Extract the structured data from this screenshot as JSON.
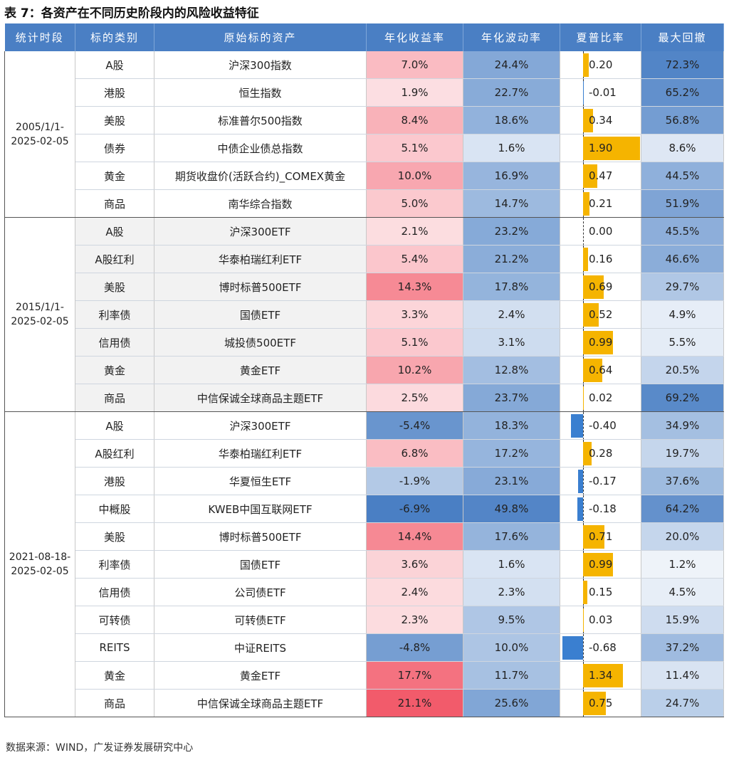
{
  "title": "表 7：各资产在不同历史阶段内的风险收益特征",
  "source": "数据来源：WIND，广发证券发展研究中心",
  "headers": [
    "统计时段",
    "标的类别",
    "原始标的资产",
    "年化收益率",
    "年化波动率",
    "夏普比率",
    "最大回撤"
  ],
  "colors": {
    "header_bg": "#4a7fc4",
    "positive_heat": "#f25b6b",
    "negative_heat": "#4a7fc4",
    "sharpe_positive": "#f5b400",
    "sharpe_negative": "#3a7fd0"
  },
  "groups": [
    {
      "period": "2005/1/1-2025-02-05",
      "rows": [
        {
          "category": "A股",
          "asset": "沪深300指数",
          "ret": "7.0%",
          "vol": "24.4%",
          "sharpe": "0.20",
          "mdd": "72.3%",
          "ret_v": 7.0,
          "vol_v": 24.4,
          "sharpe_v": 0.2,
          "mdd_v": 72.3
        },
        {
          "category": "港股",
          "asset": "恒生指数",
          "ret": "1.9%",
          "vol": "22.7%",
          "sharpe": "-0.01",
          "mdd": "65.2%",
          "ret_v": 1.9,
          "vol_v": 22.7,
          "sharpe_v": -0.01,
          "mdd_v": 65.2
        },
        {
          "category": "美股",
          "asset": "标准普尔500指数",
          "ret": "8.4%",
          "vol": "18.6%",
          "sharpe": "0.34",
          "mdd": "56.8%",
          "ret_v": 8.4,
          "vol_v": 18.6,
          "sharpe_v": 0.34,
          "mdd_v": 56.8
        },
        {
          "category": "债券",
          "asset": "中债企业债总指数",
          "ret": "5.1%",
          "vol": "1.6%",
          "sharpe": "1.90",
          "mdd": "8.6%",
          "ret_v": 5.1,
          "vol_v": 1.6,
          "sharpe_v": 1.9,
          "mdd_v": 8.6
        },
        {
          "category": "黄金",
          "asset": "期货收盘价(活跃合约)_COMEX黄金",
          "ret": "10.0%",
          "vol": "16.9%",
          "sharpe": "0.47",
          "mdd": "44.5%",
          "ret_v": 10.0,
          "vol_v": 16.9,
          "sharpe_v": 0.47,
          "mdd_v": 44.5
        },
        {
          "category": "商品",
          "asset": "南华综合指数",
          "ret": "5.0%",
          "vol": "14.7%",
          "sharpe": "0.21",
          "mdd": "51.9%",
          "ret_v": 5.0,
          "vol_v": 14.7,
          "sharpe_v": 0.21,
          "mdd_v": 51.9
        }
      ]
    },
    {
      "period": "2015/1/1-2025-02-05",
      "rows": [
        {
          "category": "A股",
          "asset": "沪深300ETF",
          "ret": "2.1%",
          "vol": "23.2%",
          "sharpe": "0.00",
          "mdd": "45.5%",
          "ret_v": 2.1,
          "vol_v": 23.2,
          "sharpe_v": 0.0,
          "mdd_v": 45.5
        },
        {
          "category": "A股红利",
          "asset": "华泰柏瑞红利ETF",
          "ret": "5.4%",
          "vol": "21.2%",
          "sharpe": "0.16",
          "mdd": "46.6%",
          "ret_v": 5.4,
          "vol_v": 21.2,
          "sharpe_v": 0.16,
          "mdd_v": 46.6
        },
        {
          "category": "美股",
          "asset": "博时标普500ETF",
          "ret": "14.3%",
          "vol": "17.8%",
          "sharpe": "0.69",
          "mdd": "29.7%",
          "ret_v": 14.3,
          "vol_v": 17.8,
          "sharpe_v": 0.69,
          "mdd_v": 29.7
        },
        {
          "category": "利率债",
          "asset": "国债ETF",
          "ret": "3.3%",
          "vol": "2.4%",
          "sharpe": "0.52",
          "mdd": "4.9%",
          "ret_v": 3.3,
          "vol_v": 2.4,
          "sharpe_v": 0.52,
          "mdd_v": 4.9
        },
        {
          "category": "信用债",
          "asset": "城投债500ETF",
          "ret": "5.1%",
          "vol": "3.1%",
          "sharpe": "0.99",
          "mdd": "5.5%",
          "ret_v": 5.1,
          "vol_v": 3.1,
          "sharpe_v": 0.99,
          "mdd_v": 5.5
        },
        {
          "category": "黄金",
          "asset": "黄金ETF",
          "ret": "10.2%",
          "vol": "12.8%",
          "sharpe": "0.64",
          "mdd": "20.5%",
          "ret_v": 10.2,
          "vol_v": 12.8,
          "sharpe_v": 0.64,
          "mdd_v": 20.5
        },
        {
          "category": "商品",
          "asset": "中信保诚全球商品主题ETF",
          "ret": "2.5%",
          "vol": "23.7%",
          "sharpe": "0.02",
          "mdd": "69.2%",
          "ret_v": 2.5,
          "vol_v": 23.7,
          "sharpe_v": 0.02,
          "mdd_v": 69.2
        }
      ]
    },
    {
      "period": "2021-08-18-2025-02-05",
      "rows": [
        {
          "category": "A股",
          "asset": "沪深300ETF",
          "ret": "-5.4%",
          "vol": "18.3%",
          "sharpe": "-0.40",
          "mdd": "34.9%",
          "ret_v": -5.4,
          "vol_v": 18.3,
          "sharpe_v": -0.4,
          "mdd_v": 34.9
        },
        {
          "category": "A股红利",
          "asset": "华泰柏瑞红利ETF",
          "ret": "6.8%",
          "vol": "17.2%",
          "sharpe": "0.28",
          "mdd": "19.7%",
          "ret_v": 6.8,
          "vol_v": 17.2,
          "sharpe_v": 0.28,
          "mdd_v": 19.7
        },
        {
          "category": "港股",
          "asset": "华夏恒生ETF",
          "ret": "-1.9%",
          "vol": "23.1%",
          "sharpe": "-0.17",
          "mdd": "37.6%",
          "ret_v": -1.9,
          "vol_v": 23.1,
          "sharpe_v": -0.17,
          "mdd_v": 37.6
        },
        {
          "category": "中概股",
          "asset": "KWEB中国互联网ETF",
          "ret": "-6.9%",
          "vol": "49.8%",
          "sharpe": "-0.18",
          "mdd": "64.2%",
          "ret_v": -6.9,
          "vol_v": 49.8,
          "sharpe_v": -0.18,
          "mdd_v": 64.2
        },
        {
          "category": "美股",
          "asset": "博时标普500ETF",
          "ret": "14.4%",
          "vol": "17.6%",
          "sharpe": "0.71",
          "mdd": "20.0%",
          "ret_v": 14.4,
          "vol_v": 17.6,
          "sharpe_v": 0.71,
          "mdd_v": 20.0
        },
        {
          "category": "利率债",
          "asset": "国债ETF",
          "ret": "3.6%",
          "vol": "1.6%",
          "sharpe": "0.99",
          "mdd": "1.2%",
          "ret_v": 3.6,
          "vol_v": 1.6,
          "sharpe_v": 0.99,
          "mdd_v": 1.2
        },
        {
          "category": "信用债",
          "asset": "公司债ETF",
          "ret": "2.4%",
          "vol": "2.3%",
          "sharpe": "0.15",
          "mdd": "4.5%",
          "ret_v": 2.4,
          "vol_v": 2.3,
          "sharpe_v": 0.15,
          "mdd_v": 4.5
        },
        {
          "category": "可转债",
          "asset": "可转债ETF",
          "ret": "2.3%",
          "vol": "9.5%",
          "sharpe": "0.03",
          "mdd": "15.9%",
          "ret_v": 2.3,
          "vol_v": 9.5,
          "sharpe_v": 0.03,
          "mdd_v": 15.9
        },
        {
          "category": "REITS",
          "asset": "中证REITS",
          "ret": "-4.8%",
          "vol": "10.0%",
          "sharpe": "-0.68",
          "mdd": "37.2%",
          "ret_v": -4.8,
          "vol_v": 10.0,
          "sharpe_v": -0.68,
          "mdd_v": 37.2
        },
        {
          "category": "黄金",
          "asset": "黄金ETF",
          "ret": "17.7%",
          "vol": "11.7%",
          "sharpe": "1.34",
          "mdd": "11.4%",
          "ret_v": 17.7,
          "vol_v": 11.7,
          "sharpe_v": 1.34,
          "mdd_v": 11.4
        },
        {
          "category": "商品",
          "asset": "中信保诚全球商品主题ETF",
          "ret": "21.1%",
          "vol": "25.6%",
          "sharpe": "0.75",
          "mdd": "24.7%",
          "ret_v": 21.1,
          "vol_v": 25.6,
          "sharpe_v": 0.75,
          "mdd_v": 24.7
        }
      ]
    }
  ]
}
